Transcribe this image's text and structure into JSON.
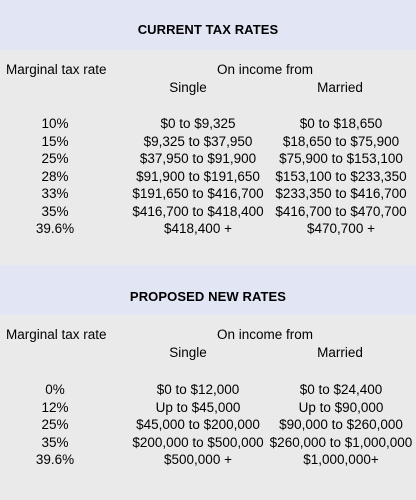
{
  "current": {
    "title": "CURRENT TAX RATES",
    "header_rate": "Marginal tax rate",
    "header_income": "On income from",
    "header_single": "Single",
    "header_married": "Married",
    "rows": [
      {
        "rate": "10%",
        "single": "$0 to $9,325",
        "married": "$0 to $18,650"
      },
      {
        "rate": "15%",
        "single": "$9,325 to $37,950",
        "married": "$18,650 to $75,900"
      },
      {
        "rate": "25%",
        "single": "$37,950 to $91,900",
        "married": "$75,900 to $153,100"
      },
      {
        "rate": "28%",
        "single": "$91,900 to $191,650",
        "married": "$153,100 to $233,350"
      },
      {
        "rate": "33%",
        "single": "$191,650 to $416,700",
        "married": "$233,350 to $416,700"
      },
      {
        "rate": "35%",
        "single": "$416,700 to $418,400",
        "married": "$416,700 to $470,700"
      },
      {
        "rate": "39.6%",
        "single": "$418,400 +",
        "married": "$470,700 +"
      }
    ]
  },
  "proposed": {
    "title": "PROPOSED NEW RATES",
    "header_rate": "Marginal tax rate",
    "header_income": "On income from",
    "header_single": "Single",
    "header_married": "Married",
    "rows": [
      {
        "rate": "0%",
        "single": "$0 to $12,000",
        "married": "$0 to $24,400"
      },
      {
        "rate": "12%",
        "single": "Up to $45,000",
        "married": "Up to $90,000"
      },
      {
        "rate": "25%",
        "single": "$45,000 to $200,000",
        "married": "$90,000 to $260,000"
      },
      {
        "rate": "35%",
        "single": "$200,000 to $500,000",
        "married": "$260,000 to $1,000,000"
      },
      {
        "rate": "39.6%",
        "single": "$500,000 +",
        "married": "$1,000,000+"
      }
    ]
  },
  "colors": {
    "band": "#e2e5f4",
    "panel": "#eaeaea"
  }
}
